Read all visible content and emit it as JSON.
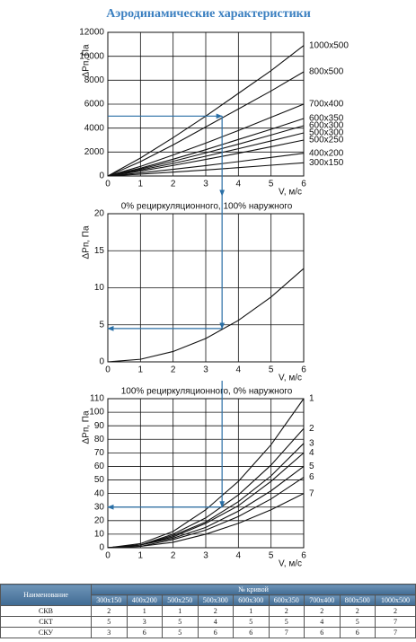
{
  "title": "Аэродинамические характеристики",
  "chart_data": [
    {
      "type": "line",
      "ylabel": "ΔPп, Па",
      "xlabel": "V, м/с",
      "xlim": [
        0,
        6
      ],
      "xticks": [
        0,
        1,
        2,
        3,
        4,
        5,
        6
      ],
      "ylim": [
        0,
        12000
      ],
      "yticks": [
        0,
        2000,
        4000,
        6000,
        8000,
        10000,
        12000
      ],
      "grid": true,
      "color": "#111111",
      "guide_color": "#2a6fa6",
      "guide": {
        "x": 3.5,
        "y": 5000
      },
      "x": [
        0,
        1,
        2,
        3,
        4,
        5,
        6
      ],
      "series": [
        {
          "name": "1000x500",
          "values": [
            0,
            1500,
            3200,
            5000,
            6900,
            8800,
            10900
          ]
        },
        {
          "name": "800x500",
          "values": [
            0,
            1200,
            2600,
            4100,
            5600,
            7100,
            8700
          ]
        },
        {
          "name": "700x400",
          "values": [
            0,
            800,
            1750,
            2750,
            3800,
            4900,
            6000
          ]
        },
        {
          "name": "600x350",
          "values": [
            0,
            650,
            1400,
            2200,
            3050,
            3900,
            4800
          ]
        },
        {
          "name": "600x300",
          "values": [
            0,
            580,
            1230,
            1930,
            2660,
            3420,
            4200
          ]
        },
        {
          "name": "500x300",
          "values": [
            0,
            500,
            1050,
            1650,
            2280,
            2930,
            3600
          ]
        },
        {
          "name": "500x250",
          "values": [
            0,
            410,
            880,
            1380,
            1900,
            2440,
            3000
          ]
        },
        {
          "name": "400x200",
          "values": [
            0,
            260,
            560,
            870,
            1200,
            1550,
            1900
          ]
        },
        {
          "name": "300x150",
          "values": [
            0,
            150,
            320,
            500,
            700,
            900,
            1100
          ]
        }
      ]
    },
    {
      "type": "line",
      "title": "0% рециркуляционного, 100% наружного",
      "ylabel": "ΔPп, Па",
      "xlabel": "V, м/с",
      "xlim": [
        0,
        6
      ],
      "xticks": [
        0,
        1,
        2,
        3,
        4,
        5,
        6
      ],
      "ylim": [
        0,
        20
      ],
      "yticks": [
        0,
        5,
        10,
        15,
        20
      ],
      "grid": true,
      "color": "#111111",
      "guide_color": "#2a6fa6",
      "guide": {
        "x": 3.5,
        "y": 4.5
      },
      "x": [
        0,
        1,
        2,
        3,
        4,
        5,
        6
      ],
      "values": [
        0,
        0.35,
        1.4,
        3.15,
        5.6,
        8.75,
        12.6
      ]
    },
    {
      "type": "line",
      "title": "100% рециркуляционного, 0% наружного",
      "ylabel": "ΔPп, Па",
      "xlabel": "V, м/с",
      "xlim": [
        0,
        6
      ],
      "xticks": [
        0,
        1,
        2,
        3,
        4,
        5,
        6
      ],
      "ylim": [
        0,
        110
      ],
      "yticks": [
        0,
        10,
        20,
        30,
        40,
        50,
        60,
        70,
        80,
        90,
        100,
        110
      ],
      "grid": true,
      "color": "#111111",
      "guide_color": "#2a6fa6",
      "guide": {
        "x": 3.5,
        "y": 30
      },
      "x": [
        0,
        1,
        2,
        3,
        4,
        5,
        6
      ],
      "series": [
        {
          "name": "1",
          "values": [
            0,
            3,
            12,
            28,
            49,
            76,
            110
          ]
        },
        {
          "name": "2",
          "values": [
            0,
            2,
            10,
            22,
            39,
            61,
            88
          ]
        },
        {
          "name": "3",
          "values": [
            0,
            2,
            9,
            19,
            34,
            53,
            77
          ]
        },
        {
          "name": "4",
          "values": [
            0,
            2,
            8,
            18,
            31,
            49,
            70
          ]
        },
        {
          "name": "5",
          "values": [
            0,
            2,
            7,
            15,
            27,
            42,
            60
          ]
        },
        {
          "name": "6",
          "values": [
            0,
            1,
            6,
            13,
            23,
            36,
            52
          ]
        },
        {
          "name": "7",
          "values": [
            0,
            1,
            4,
            10,
            18,
            28,
            40
          ]
        }
      ]
    }
  ],
  "table": {
    "header": {
      "name": "Наименование",
      "group": "№ кривой"
    },
    "columns": [
      "300x150",
      "400x200",
      "500x250",
      "500x300",
      "600x300",
      "600x350",
      "700x400",
      "800x500",
      "1000x500"
    ],
    "rows": [
      [
        "СКВ",
        2,
        1,
        1,
        2,
        1,
        2,
        2,
        2,
        2
      ],
      [
        "СКТ",
        5,
        3,
        5,
        4,
        5,
        5,
        4,
        5,
        7
      ],
      [
        "СКУ",
        3,
        6,
        5,
        6,
        6,
        7,
        6,
        6,
        7
      ]
    ]
  }
}
